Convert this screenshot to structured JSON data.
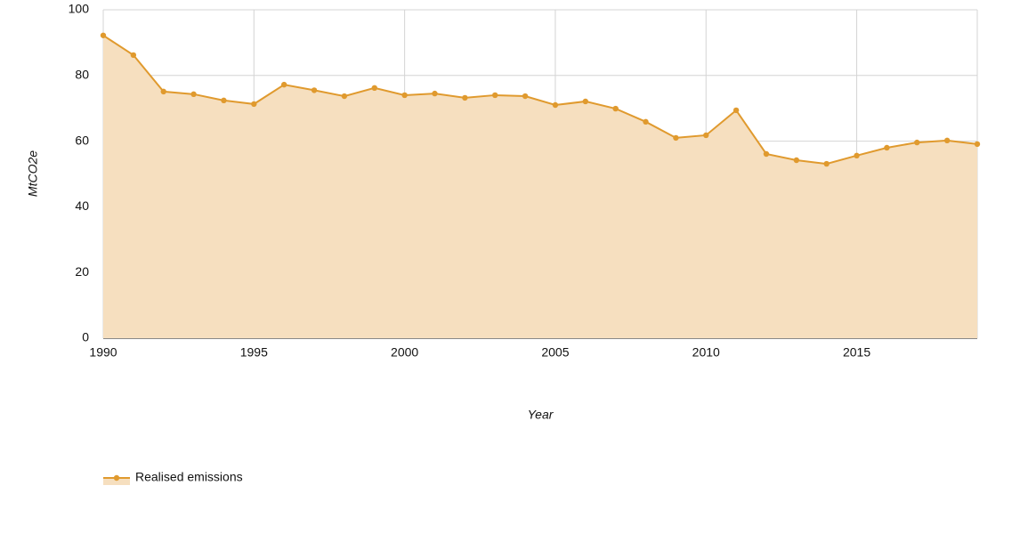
{
  "chart_data": {
    "type": "area",
    "x_label": "Year",
    "y_label": "MtCO2e",
    "x": [
      1990,
      1991,
      1992,
      1993,
      1994,
      1995,
      1996,
      1997,
      1998,
      1999,
      2000,
      2001,
      2002,
      2003,
      2004,
      2005,
      2006,
      2007,
      2008,
      2009,
      2010,
      2011,
      2012,
      2013,
      2014,
      2015,
      2016,
      2017,
      2018,
      2019
    ],
    "series": [
      {
        "name": "Realised emissions",
        "color": "#e09a2e",
        "fill": "#f6dfbf",
        "values": [
          92.2,
          86.2,
          75.1,
          74.3,
          72.4,
          71.3,
          77.2,
          75.5,
          73.7,
          76.2,
          74.0,
          74.5,
          73.2,
          74.0,
          73.7,
          71.0,
          72.1,
          69.9,
          65.9,
          61.0,
          61.8,
          69.4,
          56.1,
          54.2,
          53.1,
          55.6,
          58.0,
          59.6,
          60.2,
          59.1
        ]
      }
    ],
    "xlim": [
      1990,
      2019
    ],
    "xticks": [
      1990,
      1995,
      2000,
      2005,
      2010,
      2015
    ],
    "ylim": [
      0,
      100
    ],
    "yticks": [
      0,
      20,
      40,
      60,
      80,
      100
    ],
    "grid": true,
    "legend": "bottom-left"
  }
}
